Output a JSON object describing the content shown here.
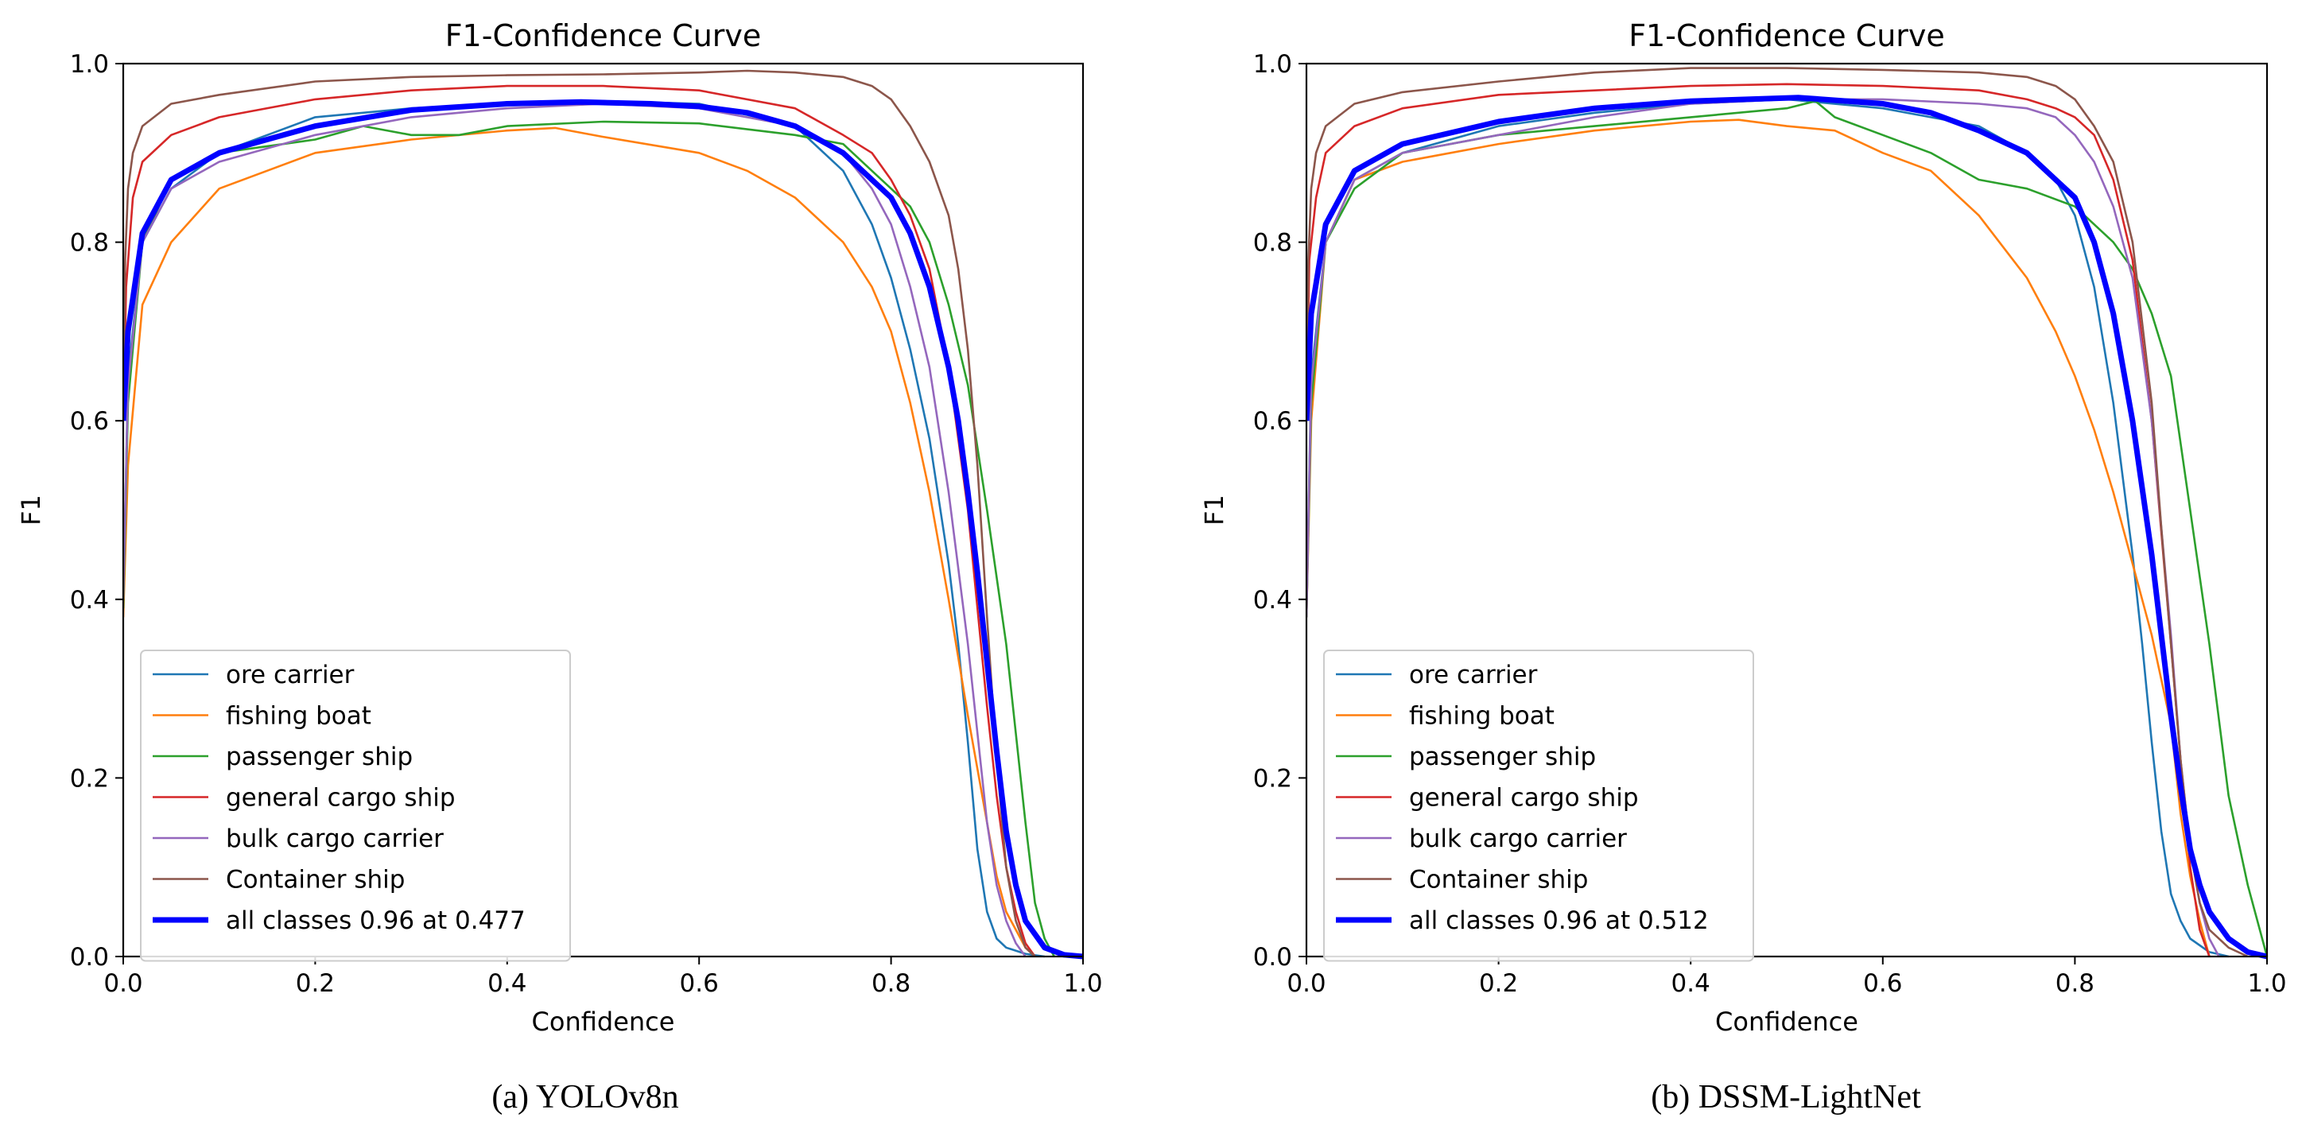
{
  "figure": {
    "panels": [
      {
        "caption": "(a) YOLOv8n"
      },
      {
        "caption": "(b) DSSM-LightNet"
      }
    ]
  },
  "chart_data": [
    {
      "type": "line",
      "title": "F1-Confidence Curve",
      "xlabel": "Confidence",
      "ylabel": "F1",
      "xlim": [
        0,
        1
      ],
      "ylim": [
        0,
        1
      ],
      "xticks": [
        "0.0",
        "0.2",
        "0.4",
        "0.6",
        "0.8",
        "1.0"
      ],
      "yticks": [
        "0.0",
        "0.2",
        "0.4",
        "0.6",
        "0.8",
        "1.0"
      ],
      "legend_position": "lower-left",
      "series": [
        {
          "name": "ore carrier",
          "color": "#1f77b4",
          "width": 2.6,
          "x": [
            0,
            0.005,
            0.02,
            0.05,
            0.1,
            0.2,
            0.3,
            0.4,
            0.5,
            0.6,
            0.7,
            0.75,
            0.78,
            0.8,
            0.82,
            0.84,
            0.86,
            0.87,
            0.88,
            0.89,
            0.9,
            0.91,
            0.92,
            0.94,
            0.96
          ],
          "y": [
            0.39,
            0.65,
            0.8,
            0.86,
            0.9,
            0.94,
            0.95,
            0.955,
            0.958,
            0.955,
            0.93,
            0.88,
            0.82,
            0.76,
            0.68,
            0.58,
            0.44,
            0.35,
            0.24,
            0.12,
            0.05,
            0.02,
            0.01,
            0.003,
            0
          ]
        },
        {
          "name": "fishing boat",
          "color": "#ff7f0e",
          "width": 2.6,
          "x": [
            0,
            0.005,
            0.02,
            0.05,
            0.1,
            0.2,
            0.3,
            0.4,
            0.45,
            0.5,
            0.6,
            0.65,
            0.7,
            0.75,
            0.78,
            0.8,
            0.82,
            0.84,
            0.86,
            0.88,
            0.9,
            0.91,
            0.92,
            0.94,
            0.95
          ],
          "y": [
            0.38,
            0.55,
            0.73,
            0.8,
            0.86,
            0.9,
            0.915,
            0.925,
            0.928,
            0.918,
            0.9,
            0.88,
            0.85,
            0.8,
            0.75,
            0.7,
            0.62,
            0.52,
            0.4,
            0.27,
            0.15,
            0.09,
            0.05,
            0.01,
            0
          ]
        },
        {
          "name": "passenger ship",
          "color": "#2ca02c",
          "width": 2.6,
          "x": [
            0,
            0.005,
            0.02,
            0.05,
            0.1,
            0.2,
            0.25,
            0.3,
            0.35,
            0.4,
            0.5,
            0.6,
            0.7,
            0.75,
            0.78,
            0.8,
            0.82,
            0.84,
            0.86,
            0.88,
            0.9,
            0.92,
            0.94,
            0.95,
            0.96,
            0.97
          ],
          "y": [
            0.39,
            0.62,
            0.8,
            0.87,
            0.9,
            0.915,
            0.93,
            0.92,
            0.92,
            0.93,
            0.935,
            0.933,
            0.92,
            0.91,
            0.88,
            0.86,
            0.84,
            0.8,
            0.73,
            0.64,
            0.5,
            0.35,
            0.15,
            0.06,
            0.02,
            0
          ]
        },
        {
          "name": "general cargo ship",
          "color": "#d62728",
          "width": 2.6,
          "x": [
            0,
            0.003,
            0.01,
            0.02,
            0.05,
            0.1,
            0.2,
            0.3,
            0.4,
            0.5,
            0.6,
            0.7,
            0.75,
            0.78,
            0.8,
            0.82,
            0.84,
            0.86,
            0.88,
            0.9,
            0.91,
            0.92,
            0.93,
            0.94,
            0.95
          ],
          "y": [
            0.6,
            0.75,
            0.85,
            0.89,
            0.92,
            0.94,
            0.96,
            0.97,
            0.975,
            0.975,
            0.97,
            0.95,
            0.92,
            0.9,
            0.87,
            0.83,
            0.77,
            0.66,
            0.5,
            0.28,
            0.18,
            0.1,
            0.05,
            0.015,
            0
          ]
        },
        {
          "name": "bulk cargo carrier",
          "color": "#9467bd",
          "width": 2.6,
          "x": [
            0,
            0.005,
            0.02,
            0.05,
            0.1,
            0.2,
            0.3,
            0.4,
            0.5,
            0.6,
            0.7,
            0.75,
            0.78,
            0.8,
            0.82,
            0.84,
            0.86,
            0.88,
            0.9,
            0.91,
            0.92,
            0.93,
            0.94
          ],
          "y": [
            0.4,
            0.64,
            0.8,
            0.86,
            0.89,
            0.92,
            0.94,
            0.95,
            0.955,
            0.95,
            0.93,
            0.9,
            0.86,
            0.82,
            0.75,
            0.66,
            0.52,
            0.35,
            0.15,
            0.08,
            0.04,
            0.015,
            0
          ]
        },
        {
          "name": "Container ship",
          "color": "#8c564b",
          "width": 2.6,
          "x": [
            0,
            0.002,
            0.005,
            0.01,
            0.02,
            0.05,
            0.1,
            0.2,
            0.3,
            0.4,
            0.5,
            0.6,
            0.65,
            0.7,
            0.75,
            0.78,
            0.8,
            0.82,
            0.84,
            0.86,
            0.87,
            0.88,
            0.89,
            0.9,
            0.91,
            0.92,
            0.93,
            0.94,
            0.95
          ],
          "y": [
            0.6,
            0.78,
            0.86,
            0.9,
            0.93,
            0.955,
            0.965,
            0.98,
            0.985,
            0.987,
            0.988,
            0.99,
            0.992,
            0.99,
            0.985,
            0.975,
            0.96,
            0.93,
            0.89,
            0.83,
            0.77,
            0.68,
            0.55,
            0.38,
            0.22,
            0.1,
            0.04,
            0.01,
            0
          ]
        },
        {
          "name": "all classes 0.96 at 0.477",
          "color": "#0000ff",
          "width": 7,
          "x": [
            0,
            0.005,
            0.02,
            0.05,
            0.1,
            0.2,
            0.3,
            0.4,
            0.477,
            0.55,
            0.6,
            0.65,
            0.7,
            0.75,
            0.8,
            0.82,
            0.84,
            0.86,
            0.87,
            0.88,
            0.89,
            0.9,
            0.91,
            0.92,
            0.93,
            0.94,
            0.96,
            0.98,
            1.0
          ],
          "y": [
            0.6,
            0.7,
            0.81,
            0.87,
            0.9,
            0.93,
            0.948,
            0.955,
            0.957,
            0.955,
            0.952,
            0.945,
            0.93,
            0.9,
            0.85,
            0.81,
            0.75,
            0.66,
            0.6,
            0.52,
            0.43,
            0.33,
            0.23,
            0.14,
            0.08,
            0.04,
            0.01,
            0.002,
            0
          ]
        }
      ]
    },
    {
      "type": "line",
      "title": "F1-Confidence Curve",
      "xlabel": "Confidence",
      "ylabel": "F1",
      "xlim": [
        0,
        1
      ],
      "ylim": [
        0,
        1
      ],
      "xticks": [
        "0.0",
        "0.2",
        "0.4",
        "0.6",
        "0.8",
        "1.0"
      ],
      "yticks": [
        "0.0",
        "0.2",
        "0.4",
        "0.6",
        "0.8",
        "1.0"
      ],
      "legend_position": "lower-left",
      "series": [
        {
          "name": "ore carrier",
          "color": "#1f77b4",
          "width": 2.6,
          "x": [
            0,
            0.005,
            0.02,
            0.05,
            0.1,
            0.2,
            0.3,
            0.4,
            0.5,
            0.6,
            0.7,
            0.75,
            0.78,
            0.8,
            0.82,
            0.84,
            0.86,
            0.87,
            0.88,
            0.89,
            0.9,
            0.91,
            0.92,
            0.94,
            0.96
          ],
          "y": [
            0.38,
            0.65,
            0.8,
            0.87,
            0.9,
            0.93,
            0.945,
            0.955,
            0.96,
            0.95,
            0.93,
            0.9,
            0.87,
            0.83,
            0.75,
            0.62,
            0.45,
            0.35,
            0.24,
            0.14,
            0.07,
            0.04,
            0.02,
            0.005,
            0
          ]
        },
        {
          "name": "fishing boat",
          "color": "#ff7f0e",
          "width": 2.6,
          "x": [
            0,
            0.005,
            0.02,
            0.05,
            0.1,
            0.2,
            0.3,
            0.4,
            0.45,
            0.5,
            0.55,
            0.6,
            0.65,
            0.7,
            0.75,
            0.78,
            0.8,
            0.82,
            0.84,
            0.86,
            0.88,
            0.9,
            0.91,
            0.92,
            0.93,
            0.94
          ],
          "y": [
            0.38,
            0.6,
            0.8,
            0.87,
            0.89,
            0.91,
            0.925,
            0.935,
            0.937,
            0.93,
            0.925,
            0.9,
            0.88,
            0.83,
            0.76,
            0.7,
            0.65,
            0.59,
            0.52,
            0.44,
            0.36,
            0.26,
            0.16,
            0.09,
            0.04,
            0
          ]
        },
        {
          "name": "passenger ship",
          "color": "#2ca02c",
          "width": 2.6,
          "x": [
            0,
            0.005,
            0.02,
            0.05,
            0.1,
            0.2,
            0.3,
            0.4,
            0.5,
            0.53,
            0.55,
            0.6,
            0.65,
            0.7,
            0.75,
            0.8,
            0.84,
            0.86,
            0.88,
            0.9,
            0.92,
            0.94,
            0.96,
            0.98,
            1.0
          ],
          "y": [
            0.38,
            0.62,
            0.8,
            0.86,
            0.9,
            0.92,
            0.93,
            0.94,
            0.95,
            0.958,
            0.94,
            0.92,
            0.9,
            0.87,
            0.86,
            0.84,
            0.8,
            0.77,
            0.72,
            0.65,
            0.5,
            0.35,
            0.18,
            0.08,
            0
          ]
        },
        {
          "name": "general cargo ship",
          "color": "#d62728",
          "width": 2.6,
          "x": [
            0,
            0.003,
            0.01,
            0.02,
            0.05,
            0.1,
            0.2,
            0.3,
            0.4,
            0.5,
            0.6,
            0.7,
            0.75,
            0.78,
            0.8,
            0.82,
            0.84,
            0.86,
            0.88,
            0.9,
            0.91,
            0.92,
            0.93,
            0.94
          ],
          "y": [
            0.6,
            0.78,
            0.85,
            0.9,
            0.93,
            0.95,
            0.965,
            0.97,
            0.975,
            0.977,
            0.975,
            0.97,
            0.96,
            0.95,
            0.94,
            0.92,
            0.87,
            0.78,
            0.6,
            0.35,
            0.22,
            0.1,
            0.03,
            0
          ]
        },
        {
          "name": "bulk cargo carrier",
          "color": "#9467bd",
          "width": 2.6,
          "x": [
            0,
            0.005,
            0.02,
            0.05,
            0.1,
            0.2,
            0.3,
            0.4,
            0.5,
            0.6,
            0.7,
            0.75,
            0.78,
            0.8,
            0.82,
            0.84,
            0.86,
            0.88,
            0.9,
            0.91,
            0.92,
            0.93,
            0.94,
            0.95
          ],
          "y": [
            0.38,
            0.64,
            0.8,
            0.87,
            0.9,
            0.92,
            0.94,
            0.955,
            0.96,
            0.96,
            0.955,
            0.95,
            0.94,
            0.92,
            0.89,
            0.84,
            0.76,
            0.6,
            0.36,
            0.22,
            0.12,
            0.06,
            0.02,
            0
          ]
        },
        {
          "name": "Container ship",
          "color": "#8c564b",
          "width": 2.6,
          "x": [
            0,
            0.002,
            0.005,
            0.01,
            0.02,
            0.05,
            0.1,
            0.2,
            0.3,
            0.4,
            0.5,
            0.6,
            0.7,
            0.75,
            0.78,
            0.8,
            0.82,
            0.84,
            0.86,
            0.88,
            0.89,
            0.9,
            0.91,
            0.92,
            0.93,
            0.94,
            0.96,
            0.98
          ],
          "y": [
            0.6,
            0.78,
            0.86,
            0.9,
            0.93,
            0.955,
            0.968,
            0.98,
            0.99,
            0.995,
            0.995,
            0.993,
            0.99,
            0.985,
            0.975,
            0.96,
            0.93,
            0.89,
            0.8,
            0.62,
            0.48,
            0.35,
            0.22,
            0.12,
            0.06,
            0.03,
            0.01,
            0
          ]
        },
        {
          "name": "all classes 0.96 at 0.512",
          "color": "#0000ff",
          "width": 7,
          "x": [
            0,
            0.005,
            0.02,
            0.05,
            0.1,
            0.2,
            0.3,
            0.4,
            0.512,
            0.6,
            0.65,
            0.7,
            0.75,
            0.78,
            0.8,
            0.82,
            0.84,
            0.86,
            0.88,
            0.89,
            0.9,
            0.91,
            0.92,
            0.93,
            0.94,
            0.96,
            0.98,
            1.0
          ],
          "y": [
            0.6,
            0.72,
            0.82,
            0.88,
            0.91,
            0.935,
            0.95,
            0.958,
            0.962,
            0.955,
            0.945,
            0.925,
            0.9,
            0.87,
            0.85,
            0.8,
            0.72,
            0.6,
            0.45,
            0.36,
            0.27,
            0.19,
            0.12,
            0.08,
            0.05,
            0.02,
            0.005,
            0
          ]
        }
      ]
    }
  ]
}
